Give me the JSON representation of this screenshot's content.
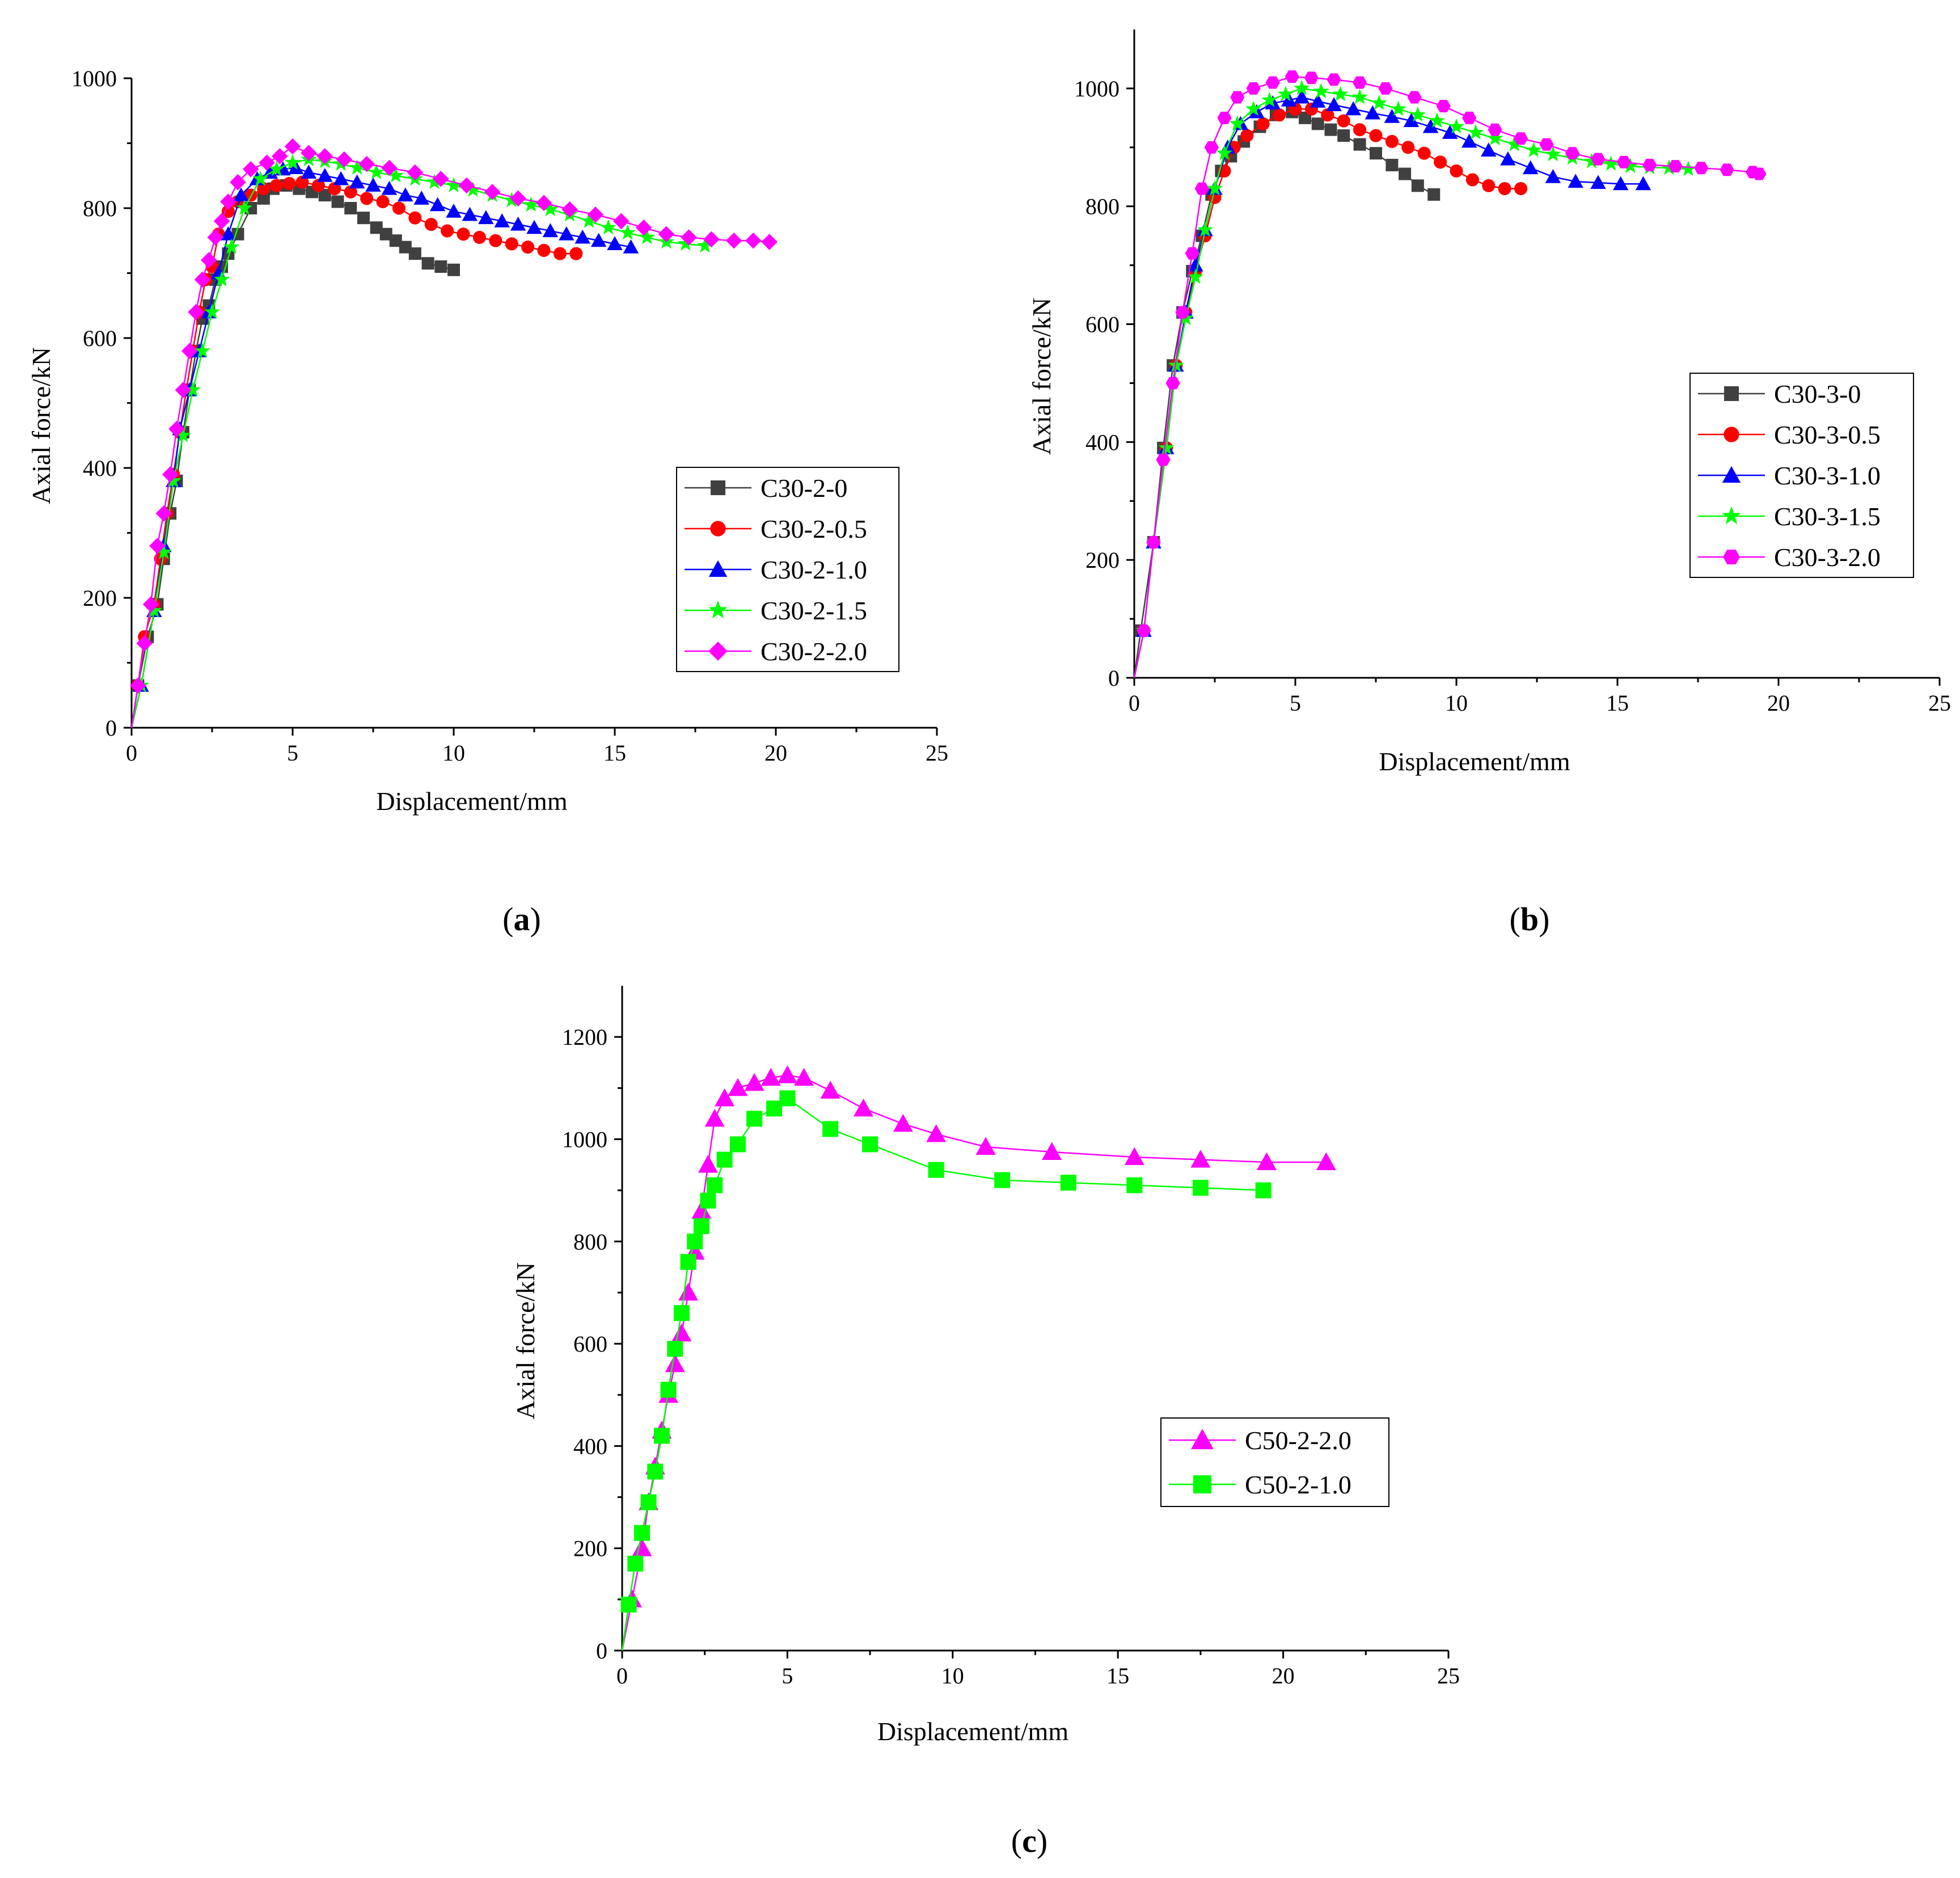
{
  "chart_data": [
    {
      "panel": "a",
      "type": "line",
      "caption": "a",
      "xlabel": "Displacement/mm",
      "ylabel": "Axial force/kN",
      "xlim": [
        0,
        25
      ],
      "ylim": [
        0,
        1000
      ],
      "xticks": [
        0,
        5,
        10,
        15,
        20,
        25
      ],
      "yticks": [
        0,
        200,
        400,
        600,
        800,
        1000
      ],
      "legend_position": "middle-right",
      "series": [
        {
          "name": "C30-2-0",
          "color": "#404040",
          "marker": "square",
          "x": [
            0,
            0.2,
            0.5,
            0.8,
            1.0,
            1.2,
            1.4,
            1.6,
            1.8,
            2.0,
            2.2,
            2.4,
            2.6,
            2.8,
            3.0,
            3.3,
            3.7,
            4.1,
            4.4,
            4.8,
            5.2,
            5.6,
            6.0,
            6.4,
            6.8,
            7.2,
            7.6,
            7.9,
            8.2,
            8.5,
            8.8,
            9.2,
            9.6,
            10.0
          ],
          "y": [
            0,
            65,
            140,
            190,
            260,
            330,
            380,
            455,
            520,
            580,
            630,
            650,
            690,
            710,
            730,
            760,
            800,
            815,
            830,
            835,
            830,
            825,
            820,
            810,
            800,
            785,
            770,
            760,
            750,
            740,
            730,
            715,
            710,
            705
          ]
        },
        {
          "name": "C30-2-0.5",
          "color": "#ff0000",
          "marker": "circle",
          "x": [
            0,
            0.2,
            0.4,
            0.7,
            0.9,
            1.1,
            1.3,
            1.5,
            1.7,
            1.9,
            2.1,
            2.3,
            2.5,
            2.7,
            3.0,
            3.3,
            3.7,
            4.1,
            4.5,
            4.9,
            5.3,
            5.8,
            6.3,
            6.8,
            7.3,
            7.8,
            8.3,
            8.8,
            9.3,
            9.8,
            10.3,
            10.8,
            11.3,
            11.8,
            12.3,
            12.8,
            13.3,
            13.8
          ],
          "y": [
            0,
            65,
            140,
            190,
            260,
            330,
            390,
            455,
            520,
            580,
            640,
            690,
            710,
            760,
            795,
            810,
            820,
            830,
            835,
            838,
            840,
            835,
            830,
            825,
            815,
            810,
            800,
            785,
            775,
            765,
            760,
            755,
            750,
            745,
            740,
            735,
            730,
            730
          ]
        },
        {
          "name": "C30-2-1.0",
          "color": "#0000ff",
          "marker": "triangle",
          "x": [
            0,
            0.3,
            0.7,
            1.0,
            1.3,
            1.5,
            1.8,
            2.1,
            2.4,
            2.7,
            3.0,
            3.4,
            3.9,
            4.3,
            4.7,
            5.1,
            5.5,
            6.0,
            6.5,
            7.0,
            7.5,
            8.0,
            8.5,
            9.0,
            9.5,
            10.0,
            10.5,
            11.0,
            11.5,
            12.0,
            12.5,
            13.0,
            13.5,
            14.0,
            14.5,
            15.0,
            15.5
          ],
          "y": [
            0,
            65,
            180,
            280,
            380,
            460,
            520,
            580,
            640,
            700,
            760,
            820,
            845,
            855,
            860,
            862,
            855,
            850,
            845,
            840,
            835,
            830,
            820,
            815,
            805,
            795,
            790,
            785,
            780,
            775,
            770,
            765,
            760,
            755,
            750,
            745,
            740
          ]
        },
        {
          "name": "C30-2-1.5",
          "color": "#00ff00",
          "marker": "star",
          "x": [
            0,
            0.3,
            0.7,
            1.0,
            1.3,
            1.6,
            1.9,
            2.2,
            2.5,
            2.8,
            3.1,
            3.5,
            4.0,
            4.5,
            5.0,
            5.5,
            6.0,
            6.5,
            7.0,
            7.6,
            8.2,
            8.8,
            9.4,
            10.0,
            10.6,
            11.2,
            11.8,
            12.4,
            13.0,
            13.6,
            14.2,
            14.8,
            15.4,
            16.0,
            16.6,
            17.2,
            17.8
          ],
          "y": [
            0,
            65,
            180,
            270,
            380,
            450,
            520,
            580,
            640,
            690,
            740,
            800,
            845,
            860,
            870,
            875,
            872,
            868,
            862,
            855,
            850,
            845,
            840,
            835,
            828,
            820,
            812,
            805,
            798,
            790,
            780,
            770,
            762,
            755,
            748,
            745,
            742
          ]
        },
        {
          "name": "C30-2-2.0",
          "color": "#ff00ff",
          "marker": "diamond",
          "x": [
            0,
            0.2,
            0.4,
            0.6,
            0.8,
            1.0,
            1.2,
            1.4,
            1.6,
            1.8,
            2.0,
            2.2,
            2.4,
            2.6,
            2.8,
            3.0,
            3.3,
            3.7,
            4.2,
            4.6,
            5.0,
            5.5,
            6.0,
            6.6,
            7.3,
            8.0,
            8.8,
            9.6,
            10.4,
            11.2,
            12.0,
            12.8,
            13.6,
            14.4,
            15.2,
            15.9,
            16.6,
            17.3,
            18.0,
            18.7,
            19.3,
            19.8
          ],
          "y": [
            0,
            65,
            130,
            190,
            280,
            330,
            390,
            460,
            520,
            580,
            640,
            690,
            720,
            755,
            780,
            810,
            840,
            860,
            870,
            880,
            895,
            885,
            880,
            875,
            868,
            862,
            855,
            845,
            835,
            825,
            815,
            808,
            798,
            790,
            780,
            770,
            760,
            755,
            752,
            750,
            750,
            748
          ]
        }
      ]
    },
    {
      "panel": "b",
      "type": "line",
      "caption": "b",
      "xlabel": "Displacement/mm",
      "ylabel": "Axial force/kN",
      "xlim": [
        0,
        25
      ],
      "ylim": [
        0,
        1100
      ],
      "xticks": [
        0,
        5,
        10,
        15,
        20,
        25
      ],
      "yticks": [
        0,
        200,
        400,
        600,
        800,
        1000
      ],
      "legend_position": "middle-right",
      "series": [
        {
          "name": "C30-3-0",
          "color": "#404040",
          "marker": "square",
          "x": [
            0,
            0.2,
            0.6,
            0.9,
            1.2,
            1.5,
            1.8,
            2.1,
            2.4,
            2.7,
            3.0,
            3.4,
            3.9,
            4.4,
            4.9,
            5.3,
            5.7,
            6.1,
            6.5,
            7.0,
            7.5,
            8.0,
            8.4,
            8.8,
            9.3
          ],
          "y": [
            0,
            80,
            230,
            390,
            530,
            620,
            690,
            750,
            820,
            860,
            885,
            910,
            935,
            955,
            960,
            950,
            940,
            930,
            920,
            905,
            890,
            870,
            855,
            835,
            820
          ]
        },
        {
          "name": "C30-3-0.5",
          "color": "#ff0000",
          "marker": "circle",
          "x": [
            0,
            0.3,
            0.6,
            1.0,
            1.3,
            1.6,
            1.9,
            2.2,
            2.5,
            2.8,
            3.1,
            3.5,
            4.0,
            4.5,
            5.0,
            5.5,
            6.0,
            6.5,
            7.0,
            7.5,
            8.0,
            8.5,
            9.0,
            9.5,
            10.0,
            10.5,
            11.0,
            11.5,
            12.0
          ],
          "y": [
            0,
            80,
            230,
            390,
            530,
            620,
            690,
            750,
            815,
            860,
            900,
            920,
            940,
            955,
            965,
            965,
            955,
            945,
            930,
            920,
            910,
            900,
            890,
            875,
            860,
            845,
            835,
            830,
            830
          ]
        },
        {
          "name": "C30-3-1.0",
          "color": "#0000ff",
          "marker": "triangle",
          "x": [
            0,
            0.3,
            0.6,
            1.0,
            1.3,
            1.6,
            1.9,
            2.2,
            2.5,
            2.9,
            3.3,
            3.8,
            4.3,
            4.8,
            5.2,
            5.7,
            6.2,
            6.8,
            7.4,
            8.0,
            8.6,
            9.2,
            9.8,
            10.4,
            11.0,
            11.6,
            12.3,
            13.0,
            13.7,
            14.4,
            15.1,
            15.8
          ],
          "y": [
            0,
            80,
            230,
            390,
            530,
            620,
            700,
            760,
            830,
            900,
            940,
            960,
            975,
            980,
            985,
            978,
            972,
            965,
            958,
            952,
            945,
            935,
            925,
            910,
            895,
            880,
            865,
            850,
            842,
            840,
            838,
            838
          ]
        },
        {
          "name": "C30-3-1.5",
          "color": "#00ff00",
          "marker": "star",
          "x": [
            0,
            0.3,
            0.6,
            1.0,
            1.3,
            1.6,
            1.9,
            2.2,
            2.5,
            2.8,
            3.2,
            3.7,
            4.2,
            4.7,
            5.2,
            5.8,
            6.4,
            7.0,
            7.6,
            8.2,
            8.8,
            9.4,
            10.0,
            10.6,
            11.2,
            11.8,
            12.4,
            13.0,
            13.6,
            14.2,
            14.8,
            15.4,
            16.0,
            16.6,
            17.2
          ],
          "y": [
            0,
            80,
            230,
            390,
            530,
            610,
            680,
            760,
            830,
            890,
            940,
            965,
            980,
            990,
            1000,
            995,
            990,
            985,
            975,
            965,
            955,
            945,
            935,
            925,
            915,
            905,
            895,
            888,
            882,
            876,
            872,
            868,
            866,
            865,
            863
          ]
        },
        {
          "name": "C30-3-2.0",
          "color": "#ff00ff",
          "marker": "hexagon",
          "x": [
            0,
            0.3,
            0.6,
            0.9,
            1.2,
            1.5,
            1.8,
            2.1,
            2.4,
            2.8,
            3.2,
            3.7,
            4.3,
            4.9,
            5.5,
            6.2,
            7.0,
            7.8,
            8.7,
            9.6,
            10.4,
            11.2,
            12.0,
            12.8,
            13.6,
            14.4,
            15.2,
            16.0,
            16.8,
            17.6,
            18.4,
            19.2,
            19.4
          ],
          "y": [
            0,
            80,
            230,
            370,
            500,
            620,
            720,
            830,
            900,
            950,
            985,
            1000,
            1010,
            1020,
            1018,
            1015,
            1010,
            1000,
            985,
            970,
            950,
            930,
            915,
            905,
            890,
            880,
            875,
            870,
            868,
            865,
            862,
            858,
            855
          ]
        }
      ]
    },
    {
      "panel": "c",
      "type": "line",
      "caption": "c",
      "xlabel": "Displacement/mm",
      "ylabel": "Axial force/kN",
      "xlim": [
        0,
        25
      ],
      "ylim": [
        0,
        1300
      ],
      "xticks": [
        0,
        5,
        10,
        15,
        20,
        25
      ],
      "yticks": [
        0,
        200,
        400,
        600,
        800,
        1000,
        1200
      ],
      "legend_position": "bottom-right",
      "series": [
        {
          "name": "C50-2-2.0",
          "color": "#ff00ff",
          "marker": "triangle",
          "x": [
            0,
            0.3,
            0.6,
            0.8,
            1.0,
            1.2,
            1.4,
            1.6,
            1.8,
            2.0,
            2.2,
            2.4,
            2.6,
            2.8,
            3.1,
            3.5,
            4.0,
            4.5,
            5.0,
            5.5,
            6.3,
            7.3,
            8.5,
            9.5,
            11.0,
            13.0,
            15.5,
            17.5,
            19.5,
            21.3
          ],
          "y": [
            0,
            100,
            200,
            290,
            360,
            430,
            500,
            560,
            620,
            700,
            780,
            860,
            950,
            1040,
            1080,
            1100,
            1110,
            1120,
            1125,
            1120,
            1095,
            1060,
            1030,
            1010,
            985,
            975,
            965,
            960,
            955,
            955
          ]
        },
        {
          "name": "C50-2-1.0",
          "color": "#00ff00",
          "marker": "square",
          "x": [
            0,
            0.2,
            0.4,
            0.6,
            0.8,
            1.0,
            1.2,
            1.4,
            1.6,
            1.8,
            2.0,
            2.2,
            2.4,
            2.6,
            2.8,
            3.1,
            3.5,
            4.0,
            4.6,
            5.0,
            6.3,
            7.5,
            9.5,
            11.5,
            13.5,
            15.5,
            17.5,
            19.4
          ],
          "y": [
            0,
            90,
            170,
            230,
            290,
            350,
            420,
            510,
            590,
            660,
            760,
            800,
            830,
            880,
            910,
            960,
            990,
            1040,
            1060,
            1080,
            1020,
            990,
            940,
            920,
            915,
            910,
            905,
            900
          ]
        }
      ]
    }
  ]
}
